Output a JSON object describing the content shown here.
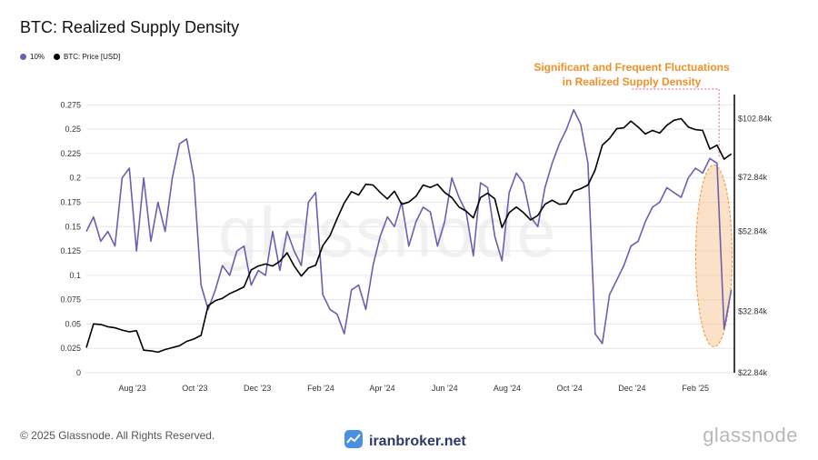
{
  "header": {
    "title": "BTC: Realized Supply Density"
  },
  "legend": {
    "items": [
      {
        "label": "10%",
        "color": "#6b5fb0"
      },
      {
        "label": "BTC: Price [USD]",
        "color": "#000000"
      }
    ]
  },
  "annotation": {
    "line1": "Significant and Frequent Fluctuations",
    "line2": "in Realized Supply Density",
    "color": "#f0902a"
  },
  "watermark": "glassnode",
  "footer": {
    "copyright": "© 2025 Glassnode. All Rights Reserved.",
    "brand": "iranbroker.net",
    "logo_text": "glassnode"
  },
  "chart_data": {
    "type": "line",
    "x_tick_labels": [
      "Aug '23",
      "Oct '23",
      "Dec '23",
      "Feb '24",
      "Apr '24",
      "Jun '24",
      "Aug '24",
      "Oct '24",
      "Dec '24",
      "Feb '25"
    ],
    "y_left_ticks": [
      "0",
      "0.025",
      "0.05",
      "0.075",
      "0.1",
      "0.125",
      "0.15",
      "0.175",
      "0.2",
      "0.225",
      "0.25",
      "0.275"
    ],
    "y_right_ticks": [
      "$22.84k",
      "$32.84k",
      "$52.84k",
      "$72.84k",
      "$102.84k"
    ],
    "y_left_range": [
      0,
      0.28
    ],
    "y_right_scale": "log",
    "x_range": [
      "2023-06-26",
      "2025-03-20"
    ],
    "grid": "horizontal",
    "series": [
      {
        "name": "10%",
        "color": "#6b5fb0",
        "axis": "left",
        "x": [
          "2023-06-26",
          "2023-07-03",
          "2023-07-10",
          "2023-07-17",
          "2023-07-24",
          "2023-07-31",
          "2023-08-07",
          "2023-08-14",
          "2023-08-21",
          "2023-08-28",
          "2023-09-04",
          "2023-09-11",
          "2023-09-18",
          "2023-09-25",
          "2023-10-02",
          "2023-10-09",
          "2023-10-16",
          "2023-10-23",
          "2023-10-30",
          "2023-11-06",
          "2023-11-13",
          "2023-11-20",
          "2023-11-27",
          "2023-12-04",
          "2023-12-11",
          "2023-12-18",
          "2023-12-25",
          "2024-01-01",
          "2024-01-08",
          "2024-01-15",
          "2024-01-22",
          "2024-01-29",
          "2024-02-05",
          "2024-02-12",
          "2024-02-19",
          "2024-02-26",
          "2024-03-04",
          "2024-03-11",
          "2024-03-18",
          "2024-03-25",
          "2024-04-01",
          "2024-04-08",
          "2024-04-15",
          "2024-04-22",
          "2024-04-29",
          "2024-05-06",
          "2024-05-13",
          "2024-05-20",
          "2024-05-27",
          "2024-06-03",
          "2024-06-10",
          "2024-06-17",
          "2024-06-24",
          "2024-07-01",
          "2024-07-08",
          "2024-07-15",
          "2024-07-22",
          "2024-07-29",
          "2024-08-05",
          "2024-08-12",
          "2024-08-19",
          "2024-08-26",
          "2024-09-02",
          "2024-09-09",
          "2024-09-16",
          "2024-09-23",
          "2024-09-30",
          "2024-10-07",
          "2024-10-14",
          "2024-10-21",
          "2024-10-28",
          "2024-11-04",
          "2024-11-11",
          "2024-11-18",
          "2024-11-25",
          "2024-12-02",
          "2024-12-09",
          "2024-12-16",
          "2024-12-23",
          "2024-12-30",
          "2025-01-06",
          "2025-01-13",
          "2025-01-20",
          "2025-01-27",
          "2025-02-03",
          "2025-02-10",
          "2025-02-17",
          "2025-02-24",
          "2025-03-03",
          "2025-03-10",
          "2025-03-17"
        ],
        "values": [
          0.145,
          0.16,
          0.135,
          0.145,
          0.13,
          0.2,
          0.21,
          0.125,
          0.2,
          0.135,
          0.175,
          0.145,
          0.2,
          0.235,
          0.24,
          0.2,
          0.09,
          0.065,
          0.085,
          0.11,
          0.1,
          0.125,
          0.13,
          0.09,
          0.105,
          0.1,
          0.145,
          0.105,
          0.145,
          0.125,
          0.11,
          0.175,
          0.185,
          0.08,
          0.065,
          0.06,
          0.04,
          0.085,
          0.09,
          0.065,
          0.11,
          0.14,
          0.16,
          0.15,
          0.175,
          0.13,
          0.155,
          0.17,
          0.165,
          0.13,
          0.155,
          0.2,
          0.18,
          0.165,
          0.12,
          0.195,
          0.19,
          0.14,
          0.115,
          0.185,
          0.205,
          0.195,
          0.16,
          0.15,
          0.19,
          0.215,
          0.235,
          0.25,
          0.27,
          0.255,
          0.215,
          0.04,
          0.03,
          0.08,
          0.095,
          0.11,
          0.13,
          0.135,
          0.155,
          0.17,
          0.175,
          0.19,
          0.185,
          0.18,
          0.2,
          0.21,
          0.205,
          0.22,
          0.215,
          0.045,
          0.085
        ]
      },
      {
        "name": "BTC: Price [USD]",
        "color": "#000000",
        "axis": "right",
        "x": [
          "2023-06-26",
          "2023-07-03",
          "2023-07-10",
          "2023-07-17",
          "2023-07-24",
          "2023-07-31",
          "2023-08-07",
          "2023-08-14",
          "2023-08-21",
          "2023-08-28",
          "2023-09-04",
          "2023-09-11",
          "2023-09-18",
          "2023-09-25",
          "2023-10-02",
          "2023-10-09",
          "2023-10-16",
          "2023-10-23",
          "2023-10-30",
          "2023-11-06",
          "2023-11-13",
          "2023-11-20",
          "2023-11-27",
          "2023-12-04",
          "2023-12-11",
          "2023-12-18",
          "2023-12-25",
          "2024-01-01",
          "2024-01-08",
          "2024-01-15",
          "2024-01-22",
          "2024-01-29",
          "2024-02-05",
          "2024-02-12",
          "2024-02-19",
          "2024-02-26",
          "2024-03-04",
          "2024-03-11",
          "2024-03-18",
          "2024-03-25",
          "2024-04-01",
          "2024-04-08",
          "2024-04-15",
          "2024-04-22",
          "2024-04-29",
          "2024-05-06",
          "2024-05-13",
          "2024-05-20",
          "2024-05-27",
          "2024-06-03",
          "2024-06-10",
          "2024-06-17",
          "2024-06-24",
          "2024-07-01",
          "2024-07-08",
          "2024-07-15",
          "2024-07-22",
          "2024-07-29",
          "2024-08-05",
          "2024-08-12",
          "2024-08-19",
          "2024-08-26",
          "2024-09-02",
          "2024-09-09",
          "2024-09-16",
          "2024-09-23",
          "2024-09-30",
          "2024-10-07",
          "2024-10-14",
          "2024-10-21",
          "2024-10-28",
          "2024-11-04",
          "2024-11-11",
          "2024-11-18",
          "2024-11-25",
          "2024-12-02",
          "2024-12-09",
          "2024-12-16",
          "2024-12-23",
          "2024-12-30",
          "2025-01-06",
          "2025-01-13",
          "2025-01-20",
          "2025-01-27",
          "2025-02-03",
          "2025-02-10",
          "2025-02-17",
          "2025-02-24",
          "2025-03-03",
          "2025-03-10",
          "2025-03-17"
        ],
        "values": [
          26500,
          30500,
          30400,
          30000,
          29800,
          29400,
          29100,
          29300,
          26100,
          26000,
          25800,
          26200,
          26500,
          26800,
          27500,
          27900,
          28500,
          34000,
          35000,
          35500,
          36500,
          37200,
          38000,
          42000,
          43000,
          43500,
          43000,
          44200,
          46500,
          43000,
          40500,
          42500,
          43200,
          48500,
          51500,
          57000,
          62500,
          66800,
          65500,
          69800,
          69500,
          66500,
          64000,
          67000,
          62000,
          62800,
          65000,
          69500,
          68500,
          69800,
          66500,
          64500,
          61000,
          59500,
          57200,
          64500,
          66200,
          64000,
          54000,
          59000,
          61000,
          59000,
          56500,
          58000,
          62000,
          63500,
          62000,
          62200,
          67000,
          68000,
          69500,
          76000,
          88000,
          91500,
          97000,
          97500,
          101500,
          98000,
          94000,
          96000,
          94500,
          99000,
          102000,
          103000,
          98000,
          96500,
          96000,
          86000,
          88000,
          81000,
          83500
        ]
      }
    ]
  }
}
